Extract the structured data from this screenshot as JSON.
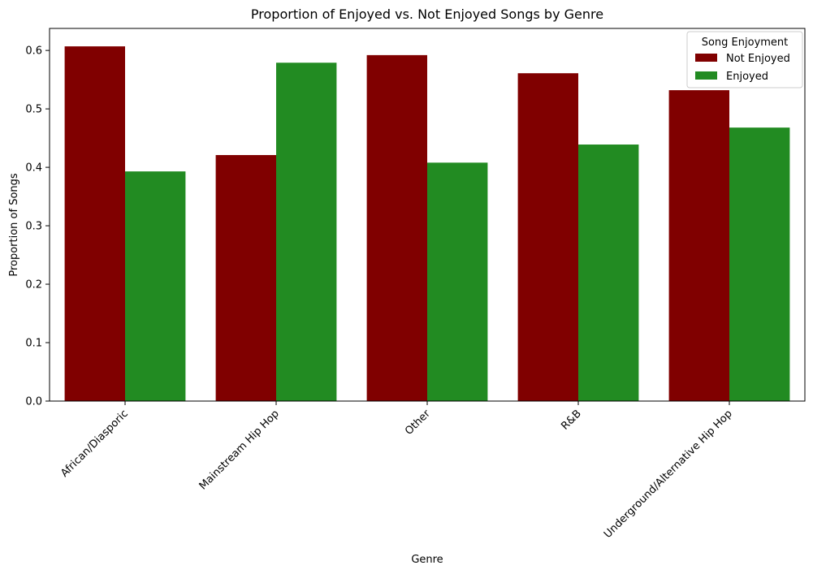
{
  "chart_data": {
    "type": "bar",
    "title": "Proportion of Enjoyed vs. Not Enjoyed Songs by Genre",
    "xlabel": "Genre",
    "ylabel": "Proportion of Songs",
    "categories": [
      "African/Diasporic",
      "Mainstream Hip Hop",
      "Other",
      "R&B",
      "Underground/Alternative Hip Hop"
    ],
    "series": [
      {
        "name": "Not Enjoyed",
        "color": "#800000",
        "values": [
          0.607,
          0.421,
          0.592,
          0.561,
          0.532
        ]
      },
      {
        "name": "Enjoyed",
        "color": "#228B22",
        "values": [
          0.393,
          0.579,
          0.408,
          0.439,
          0.468
        ]
      }
    ],
    "ylim": [
      0,
      0.6377
    ],
    "yticks": [
      "0.0",
      "0.1",
      "0.2",
      "0.3",
      "0.4",
      "0.5",
      "0.6"
    ],
    "legend": {
      "title": "Song Enjoyment",
      "placement": "top-right"
    },
    "grid": false
  }
}
